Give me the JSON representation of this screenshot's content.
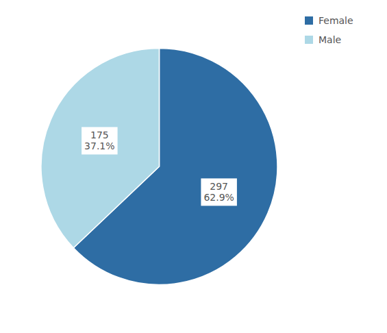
{
  "chart_data": {
    "type": "pie",
    "categories": [
      "Female",
      "Male"
    ],
    "values": [
      297,
      175
    ],
    "value_labels": [
      "297\n62.9%",
      "175\n37.1%"
    ],
    "colors": [
      "#2E6DA4",
      "#ADD8E6"
    ],
    "data_labels": true,
    "legend": "upper right"
  }
}
